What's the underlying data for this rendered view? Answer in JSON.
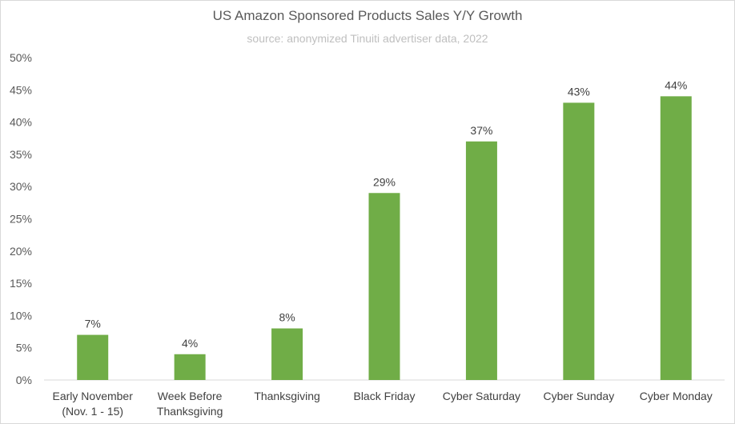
{
  "chart_data": {
    "type": "bar",
    "title": "US Amazon Sponsored Products Sales Y/Y Growth",
    "subtitle": "source: anonymized Tinuiti advertiser data, 2022",
    "xlabel": "",
    "ylabel": "",
    "ylim": [
      0,
      50
    ],
    "y_ticks": [
      {
        "value": 0,
        "label": "0%"
      },
      {
        "value": 5,
        "label": "5%"
      },
      {
        "value": 10,
        "label": "10%"
      },
      {
        "value": 15,
        "label": "15%"
      },
      {
        "value": 20,
        "label": "20%"
      },
      {
        "value": 25,
        "label": "25%"
      },
      {
        "value": 30,
        "label": "30%"
      },
      {
        "value": 35,
        "label": "35%"
      },
      {
        "value": 40,
        "label": "40%"
      },
      {
        "value": 45,
        "label": "45%"
      },
      {
        "value": 50,
        "label": "50%"
      }
    ],
    "categories": [
      [
        "Early November",
        "(Nov. 1 - 15)"
      ],
      [
        "Week Before",
        "Thanksgiving"
      ],
      [
        "Thanksgiving"
      ],
      [
        "Black Friday"
      ],
      [
        "Cyber Saturday"
      ],
      [
        "Cyber Sunday"
      ],
      [
        "Cyber Monday"
      ]
    ],
    "values": [
      7,
      4,
      8,
      29,
      37,
      43,
      44
    ],
    "data_labels": [
      "7%",
      "4%",
      "8%",
      "29%",
      "37%",
      "43%",
      "44%"
    ],
    "bar_color": "#70ad47",
    "grid": false,
    "legend": "none"
  }
}
